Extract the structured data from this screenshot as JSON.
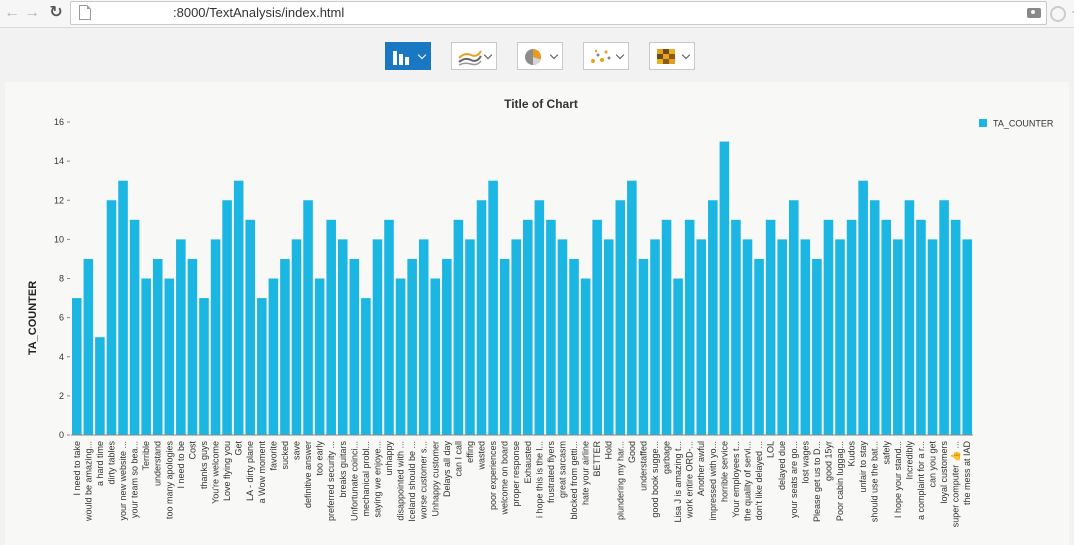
{
  "browser": {
    "url": ":8000/TextAnalysis/index.html",
    "icons": {
      "back": "arrow-left-icon",
      "forward": "arrow-right-icon",
      "reload": "reload-icon",
      "page": "page-icon",
      "bookmark": "star-icon",
      "screenshot": "camera-icon",
      "extension": "extension-icon"
    }
  },
  "toolbar": {
    "chart_types": [
      {
        "name": "bar",
        "icon": "bar-chart-icon",
        "active": true
      },
      {
        "name": "line",
        "icon": "line-chart-icon",
        "active": false
      },
      {
        "name": "pie",
        "icon": "pie-chart-icon",
        "active": false
      },
      {
        "name": "scatter",
        "icon": "scatter-chart-icon",
        "active": false
      },
      {
        "name": "heatmap",
        "icon": "heatmap-icon",
        "active": false
      }
    ]
  },
  "colors": {
    "bar": "#1cb6e2",
    "active_button": "#1a78c2"
  },
  "chart_data": {
    "type": "bar",
    "title": "Title of Chart",
    "xlabel": "",
    "ylabel": "TA_COUNTER",
    "ylim": [
      0,
      16
    ],
    "yticks": [
      0,
      2,
      4,
      6,
      8,
      10,
      12,
      14,
      16
    ],
    "legend": {
      "entries": [
        "TA_COUNTER"
      ],
      "placement": "top-right"
    },
    "grid": false,
    "categories": [
      "I need to take",
      "would be amazing...",
      "a hard time",
      "dirty tables",
      "your new website ...",
      "your team so bea...",
      "Terrible",
      "understand",
      "too many apologies",
      "I need to be",
      "Cost",
      "thanks guys",
      "You're welcome",
      "Love flying you",
      "Get",
      "LA - dirty plane",
      "a Wow moment",
      "favorite",
      "sucked",
      "save",
      "definitive answer",
      "too early",
      "preferred security ...",
      "breaks guitars",
      "Unfortunate coinci...",
      "mechanical probl...",
      "saying we enjoye...",
      "unhappy",
      "disappointed with ...",
      "Iceland should be ...",
      "worse customer s...",
      "Unhappy customer",
      "Delays all day",
      "can I call",
      "effing",
      "wasted",
      "poor experiences",
      "welcome on board",
      "proper response",
      "Exhausted",
      "i hope this is the l...",
      "frustrated flyers",
      "great sarcasm",
      "blocked from getti...",
      "hate your airline",
      "BETTER",
      "Hold",
      "plundering my har...",
      "Good",
      "understaffed",
      "good book sugge...",
      "garbage",
      "Lisa J is amazing t...",
      "work entire ORD-...",
      "Another awful",
      "impressed with yo...",
      "horrible service",
      "Your employees t...",
      "the quality of servi...",
      "don't like delayed ...",
      "LOL",
      "delayed due",
      "your seats are go...",
      "lost wages",
      "Please get us to D...",
      "good 15yr",
      "Poor cabin luggag...",
      "Kudos",
      "unfair to stay",
      "should use the bat...",
      "safely",
      "I hope your stand...",
      "Incredibly",
      "a complaint for a r...",
      "can you get",
      "loyal customers",
      "super computer 👍 ...",
      "the mess at IAD"
    ],
    "values": [
      7,
      9,
      5,
      12,
      13,
      11,
      8,
      9,
      8,
      10,
      9,
      7,
      10,
      12,
      13,
      11,
      7,
      8,
      9,
      10,
      12,
      8,
      11,
      10,
      9,
      7,
      10,
      11,
      8,
      9,
      10,
      8,
      9,
      11,
      10,
      12,
      13,
      9,
      10,
      11,
      12,
      11,
      10,
      9,
      8,
      11,
      10,
      12,
      13,
      9,
      10,
      11,
      8,
      11,
      10,
      12,
      15,
      11,
      10,
      9,
      11,
      10,
      12,
      10,
      9,
      11,
      10,
      11,
      13,
      12,
      11,
      10,
      12,
      11,
      10,
      12,
      11,
      10
    ]
  }
}
